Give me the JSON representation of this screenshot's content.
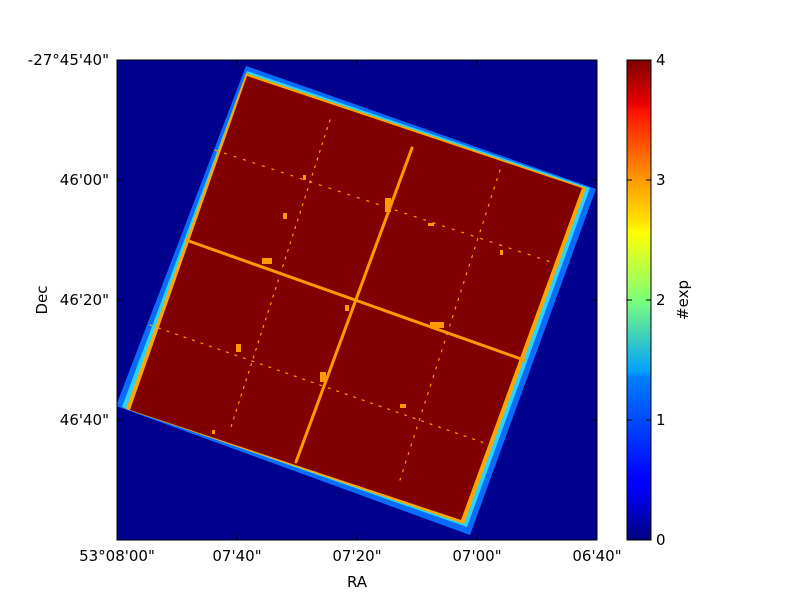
{
  "chart_data": {
    "type": "heatmap",
    "title": "",
    "xlabel": "RA",
    "ylabel": "Dec",
    "x_ticks": [
      "53°08'00\"",
      "07'40\"",
      "07'20\"",
      "07'00\"",
      "06'40\""
    ],
    "y_ticks": [
      "-27°45'40\"",
      "46'00\"",
      "46'20\"",
      "46'40\""
    ],
    "x_range_arcsec_offset": [
      0,
      80
    ],
    "y_range_arcsec_offset": [
      0,
      80
    ],
    "colorbar": {
      "label": "#exp",
      "ticks": [
        "0",
        "1",
        "2",
        "3",
        "4"
      ],
      "min": 0,
      "max": 4,
      "colormap": "jet"
    },
    "grid": false,
    "background_value": 0,
    "field": {
      "rotation_deg": 17,
      "core_value": 4,
      "edge_values": [
        1,
        3
      ],
      "seam_value": 3,
      "layout": "3x3 mosaic with chip gaps"
    }
  },
  "colors": {
    "background": "#00008f",
    "edge_outer": "#0a6cff",
    "edge_cyan": "#2ad4ff",
    "edge_mid": "#ffa500",
    "core": "#800000",
    "seam": "#ff9900"
  }
}
